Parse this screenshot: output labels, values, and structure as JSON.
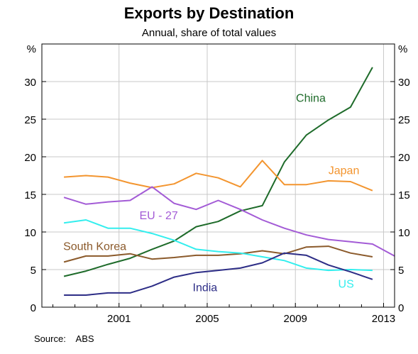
{
  "chart_data": {
    "type": "line",
    "title": "Exports by Destination",
    "subtitle": "Annual, share of total values",
    "source": "Source:    ABS",
    "y_unit_left": "%",
    "y_unit_right": "%",
    "ylim": [
      0,
      35
    ],
    "yticks": [
      0,
      5,
      10,
      15,
      20,
      25,
      30
    ],
    "xlim": [
      1997.5,
      2013.5
    ],
    "xticks": [
      2001,
      2005,
      2009,
      2013
    ],
    "x": [
      1998,
      1999,
      2000,
      2001,
      2002,
      2003,
      2004,
      2005,
      2006,
      2007,
      2008,
      2009,
      2010,
      2011,
      2012,
      2013
    ],
    "grid": true,
    "series": [
      {
        "name": "China",
        "color": "#1e6b2a",
        "values": [
          4.1,
          4.8,
          5.7,
          6.5,
          7.7,
          8.8,
          10.7,
          11.4,
          12.8,
          13.5,
          19.3,
          22.9,
          24.9,
          26.6,
          31.9,
          null
        ]
      },
      {
        "name": "Japan",
        "color": "#f3952f",
        "values": [
          17.3,
          17.5,
          17.3,
          16.5,
          15.9,
          16.4,
          17.8,
          17.2,
          16.0,
          19.5,
          16.3,
          16.3,
          16.8,
          16.7,
          15.5,
          null
        ]
      },
      {
        "name": "EU - 27",
        "color": "#a35bd6",
        "values": [
          14.6,
          13.7,
          14.0,
          14.2,
          16.0,
          13.8,
          13.0,
          14.2,
          13.0,
          11.6,
          10.5,
          9.6,
          9.0,
          8.7,
          8.4,
          6.8
        ]
      },
      {
        "name": "South Korea",
        "color": "#8b5a2b",
        "values": [
          6.0,
          6.8,
          6.8,
          7.1,
          6.4,
          6.6,
          6.9,
          6.9,
          7.1,
          7.5,
          7.1,
          8.0,
          8.1,
          7.2,
          6.7,
          null
        ]
      },
      {
        "name": "US",
        "color": "#33eeee",
        "values": [
          11.2,
          11.6,
          10.5,
          10.5,
          9.8,
          8.9,
          7.7,
          7.4,
          7.2,
          6.7,
          6.2,
          5.2,
          4.9,
          5.0,
          4.9,
          null
        ]
      },
      {
        "name": "India",
        "color": "#2d2d86",
        "values": [
          1.6,
          1.6,
          1.9,
          1.9,
          2.8,
          4.0,
          4.6,
          4.9,
          5.2,
          5.9,
          7.2,
          6.9,
          5.6,
          4.7,
          3.7,
          null
        ]
      }
    ],
    "x_offset_series": "values indexed from 1998.5",
    "labels": {
      "China": "China",
      "Japan": "Japan",
      "EU - 27": "EU - 27",
      "South Korea": "South Korea",
      "US": "US",
      "India": "India"
    }
  }
}
